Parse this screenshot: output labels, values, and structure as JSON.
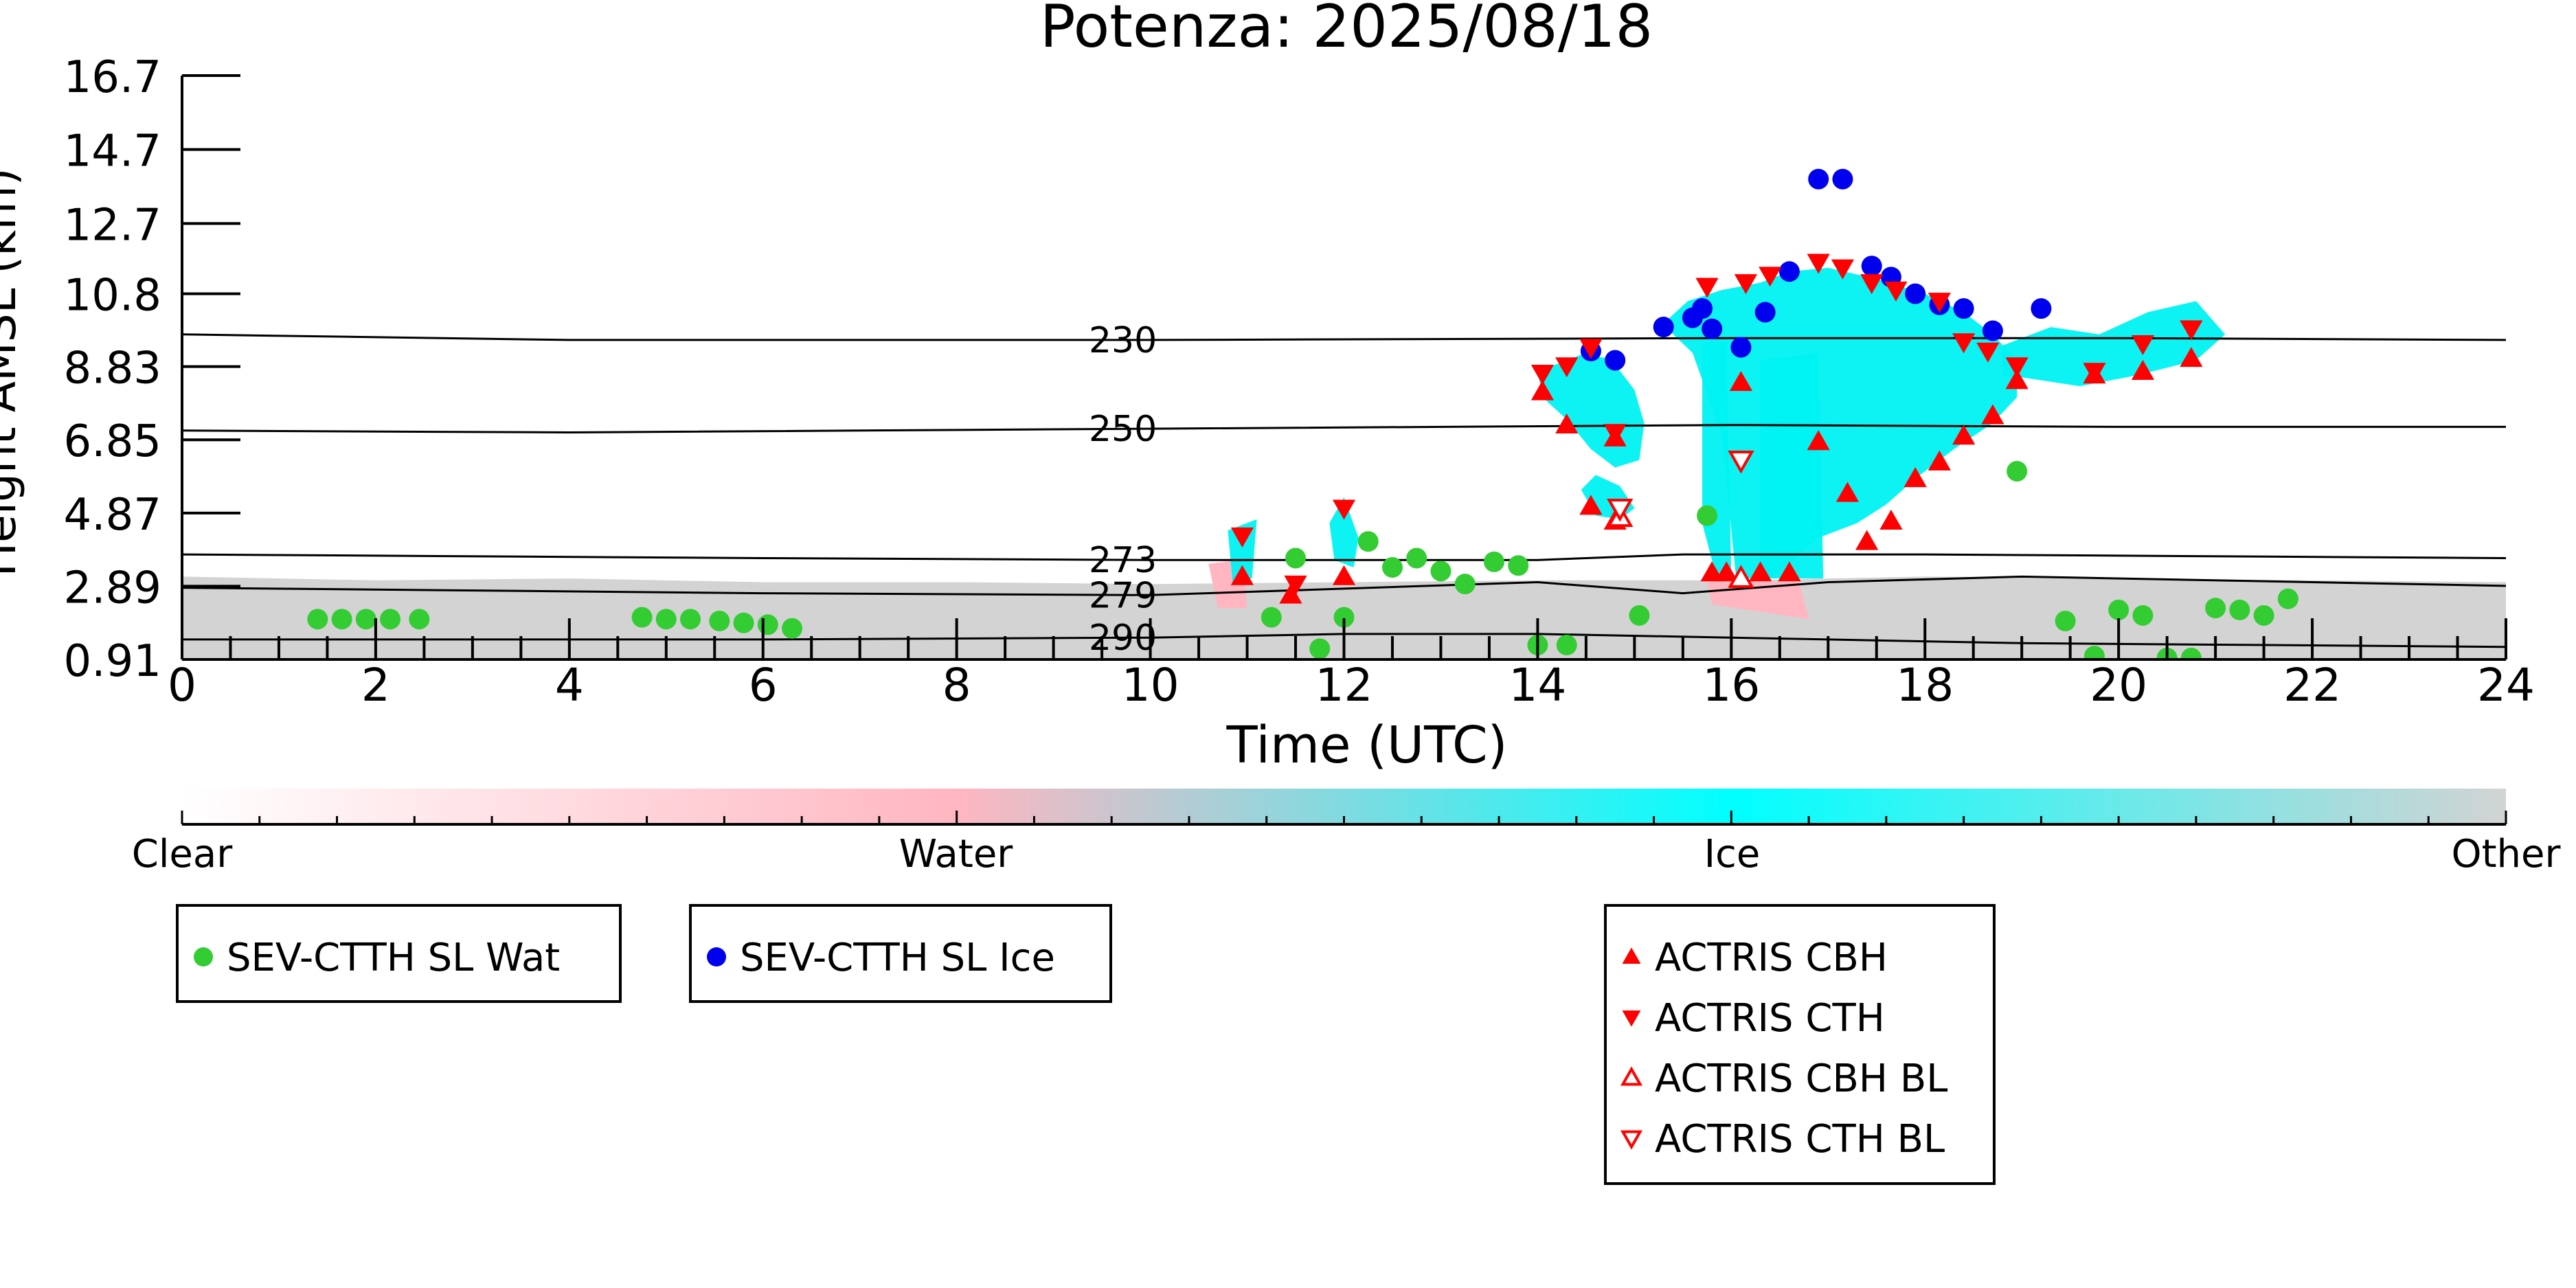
{
  "chart_data": {
    "type": "scatter",
    "title": "Potenza: 2025/08/18",
    "xlabel": "Time (UTC)",
    "ylabel": "Height AMSL (km)",
    "xlim": [
      0,
      24
    ],
    "ylim": [
      0.91,
      16.7
    ],
    "x_ticks": [
      "0",
      "2",
      "4",
      "6",
      "8",
      "10",
      "12",
      "14",
      "16",
      "18",
      "20",
      "22",
      "24"
    ],
    "y_ticks": [
      "0.91",
      "2.89",
      "4.87",
      "6.85",
      "8.83",
      "10.8",
      "12.7",
      "14.7",
      "16.7"
    ],
    "y_tick_values": [
      0.91,
      2.89,
      4.87,
      6.85,
      8.83,
      10.8,
      12.7,
      14.7,
      16.7
    ],
    "colorbar": {
      "labels": [
        "Clear",
        "Water",
        "Ice",
        "Other"
      ],
      "positions": [
        0,
        0.333,
        0.667,
        1.0
      ],
      "colors": [
        "#ffffff",
        "#ffb6c1",
        "#00ffff",
        "#d3d3d3"
      ]
    },
    "isotherms": [
      {
        "label": "230",
        "points": [
          [
            0,
            9.7
          ],
          [
            4,
            9.55
          ],
          [
            10,
            9.55
          ],
          [
            16,
            9.6
          ],
          [
            20,
            9.6
          ],
          [
            24,
            9.55
          ]
        ]
      },
      {
        "label": "250",
        "points": [
          [
            0,
            7.1
          ],
          [
            4,
            7.05
          ],
          [
            10,
            7.15
          ],
          [
            16,
            7.25
          ],
          [
            20,
            7.2
          ],
          [
            24,
            7.2
          ]
        ]
      },
      {
        "label": "273",
        "points": [
          [
            0,
            3.75
          ],
          [
            6,
            3.65
          ],
          [
            10,
            3.6
          ],
          [
            14,
            3.6
          ],
          [
            15.5,
            3.75
          ],
          [
            18,
            3.75
          ],
          [
            24,
            3.65
          ]
        ]
      },
      {
        "label": "279",
        "points": [
          [
            0,
            2.85
          ],
          [
            6,
            2.7
          ],
          [
            10,
            2.65
          ],
          [
            14,
            3.0
          ],
          [
            15.5,
            2.7
          ],
          [
            17,
            3.0
          ],
          [
            19,
            3.15
          ],
          [
            24,
            2.9
          ]
        ]
      },
      {
        "label": "290",
        "points": [
          [
            0,
            1.45
          ],
          [
            6,
            1.45
          ],
          [
            10,
            1.5
          ],
          [
            12,
            1.6
          ],
          [
            14,
            1.6
          ],
          [
            16,
            1.5
          ],
          [
            19,
            1.35
          ],
          [
            24,
            1.25
          ]
        ]
      }
    ],
    "series": [
      {
        "name": "SEV-CTTH SL Wat",
        "marker": "circle",
        "color": "#33cc33",
        "points": [
          [
            1.4,
            2.0
          ],
          [
            1.65,
            2.0
          ],
          [
            1.9,
            2.0
          ],
          [
            2.15,
            2.0
          ],
          [
            2.45,
            2.0
          ],
          [
            4.75,
            2.05
          ],
          [
            5.0,
            2.0
          ],
          [
            5.25,
            2.0
          ],
          [
            5.55,
            1.95
          ],
          [
            5.8,
            1.9
          ],
          [
            6.05,
            1.85
          ],
          [
            6.3,
            1.75
          ],
          [
            11.25,
            2.05
          ],
          [
            11.5,
            3.65
          ],
          [
            11.75,
            1.2
          ],
          [
            12.0,
            2.05
          ],
          [
            12.25,
            4.1
          ],
          [
            12.5,
            3.4
          ],
          [
            12.75,
            3.65
          ],
          [
            13.0,
            3.3
          ],
          [
            13.25,
            2.95
          ],
          [
            13.55,
            3.55
          ],
          [
            13.8,
            3.45
          ],
          [
            14.0,
            1.3
          ],
          [
            14.3,
            1.3
          ],
          [
            15.05,
            2.1
          ],
          [
            15.75,
            4.8
          ],
          [
            18.95,
            6.0
          ],
          [
            19.45,
            1.95
          ],
          [
            19.75,
            1.0
          ],
          [
            20.0,
            2.25
          ],
          [
            20.25,
            2.1
          ],
          [
            20.5,
            0.95
          ],
          [
            20.75,
            0.95
          ],
          [
            21.0,
            2.3
          ],
          [
            21.25,
            2.25
          ],
          [
            21.5,
            2.1
          ],
          [
            21.75,
            2.55
          ]
        ]
      },
      {
        "name": "SEV-CTTH SL Ice",
        "marker": "circle",
        "color": "#0000ee",
        "points": [
          [
            14.55,
            9.25
          ],
          [
            14.8,
            9.0
          ],
          [
            15.3,
            9.9
          ],
          [
            15.6,
            10.15
          ],
          [
            15.7,
            10.4
          ],
          [
            15.8,
            9.85
          ],
          [
            16.1,
            9.35
          ],
          [
            16.35,
            10.3
          ],
          [
            16.6,
            11.4
          ],
          [
            16.9,
            13.9
          ],
          [
            17.15,
            13.9
          ],
          [
            17.45,
            11.55
          ],
          [
            17.65,
            11.25
          ],
          [
            17.9,
            10.8
          ],
          [
            18.15,
            10.5
          ],
          [
            18.4,
            10.4
          ],
          [
            18.7,
            9.8
          ],
          [
            19.2,
            10.4
          ]
        ]
      },
      {
        "name": "ACTRIS CBH",
        "marker": "triangle-up",
        "color": "#ff0000",
        "points": [
          [
            10.95,
            3.15
          ],
          [
            11.45,
            2.65
          ],
          [
            12.0,
            3.15
          ],
          [
            14.05,
            8.15
          ],
          [
            14.3,
            7.25
          ],
          [
            14.55,
            5.05
          ],
          [
            14.8,
            6.9
          ],
          [
            14.8,
            4.65
          ],
          [
            15.8,
            3.25
          ],
          [
            15.95,
            3.25
          ],
          [
            16.1,
            8.4
          ],
          [
            16.3,
            3.25
          ],
          [
            16.6,
            3.25
          ],
          [
            16.9,
            6.8
          ],
          [
            17.2,
            5.4
          ],
          [
            17.4,
            4.1
          ],
          [
            17.65,
            4.65
          ],
          [
            17.9,
            5.8
          ],
          [
            18.15,
            6.25
          ],
          [
            18.4,
            6.95
          ],
          [
            18.7,
            7.5
          ],
          [
            18.95,
            8.45
          ],
          [
            19.75,
            8.6
          ],
          [
            20.25,
            8.7
          ],
          [
            20.75,
            9.05
          ]
        ]
      },
      {
        "name": "ACTRIS CTH",
        "marker": "triangle-down",
        "color": "#ff0000",
        "points": [
          [
            10.95,
            4.25
          ],
          [
            11.5,
            2.95
          ],
          [
            12.0,
            5.0
          ],
          [
            14.05,
            8.65
          ],
          [
            14.3,
            8.85
          ],
          [
            14.55,
            9.35
          ],
          [
            14.8,
            7.05
          ],
          [
            15.75,
            11.0
          ],
          [
            16.15,
            11.1
          ],
          [
            16.4,
            11.3
          ],
          [
            16.9,
            11.65
          ],
          [
            17.15,
            11.5
          ],
          [
            17.45,
            11.1
          ],
          [
            17.7,
            10.9
          ],
          [
            18.15,
            10.6
          ],
          [
            18.4,
            9.5
          ],
          [
            18.65,
            9.25
          ],
          [
            18.95,
            8.85
          ],
          [
            19.75,
            8.7
          ],
          [
            20.25,
            9.45
          ],
          [
            20.75,
            9.85
          ]
        ]
      },
      {
        "name": "ACTRIS CBH BL",
        "marker": "triangle-up-open",
        "color": "#ff0000",
        "points": [
          [
            14.85,
            4.75
          ],
          [
            16.1,
            3.1
          ]
        ]
      },
      {
        "name": "ACTRIS CTH BL",
        "marker": "triangle-down-open",
        "color": "#ff0000",
        "points": [
          [
            14.85,
            5.0
          ],
          [
            16.1,
            6.3
          ]
        ]
      }
    ],
    "cloud_mask": {
      "ice": [
        {
          "x": [
            14.0,
            14.2,
            14.45,
            14.75,
            15.0,
            15.1,
            15.05,
            14.8,
            14.55,
            14.3,
            14.05
          ],
          "y": [
            8.7,
            8.9,
            9.15,
            9.05,
            8.2,
            7.3,
            6.3,
            6.1,
            6.6,
            7.4,
            8.0
          ]
        },
        {
          "x": [
            14.45,
            14.6,
            14.85,
            15.0,
            14.85,
            14.6
          ],
          "y": [
            5.5,
            5.9,
            5.6,
            5.0,
            4.7,
            4.8
          ]
        },
        {
          "x": [
            15.3,
            15.55,
            15.9,
            16.3,
            16.6,
            17.0,
            17.5,
            18.0,
            18.4,
            18.7,
            18.95,
            18.95,
            18.7,
            18.3,
            17.9,
            17.6,
            17.3,
            16.9,
            16.4,
            16.05,
            15.9,
            15.6,
            15.4
          ],
          "y": [
            10.0,
            10.6,
            10.9,
            11.1,
            11.4,
            11.5,
            11.2,
            10.8,
            10.3,
            9.7,
            9.0,
            8.0,
            7.3,
            6.6,
            5.8,
            5.1,
            4.6,
            4.2,
            3.1,
            3.1,
            7.0,
            9.2,
            9.7
          ]
        },
        {
          "x": [
            15.7,
            15.95,
            16.0,
            15.85,
            15.7
          ],
          "y": [
            9.5,
            9.5,
            3.2,
            3.1,
            4.6
          ]
        },
        {
          "x": [
            16.3,
            16.9,
            16.95,
            16.3
          ],
          "y": [
            9.0,
            9.2,
            3.1,
            3.1
          ]
        },
        {
          "x": [
            18.8,
            19.3,
            19.8,
            20.3,
            20.8,
            21.1,
            20.8,
            20.2,
            19.6,
            19.1,
            18.8
          ],
          "y": [
            9.4,
            9.9,
            9.7,
            10.3,
            10.6,
            9.7,
            9.0,
            8.6,
            8.3,
            8.5,
            8.6
          ]
        },
        {
          "x": [
            10.8,
            11.1,
            11.05,
            10.85
          ],
          "y": [
            4.4,
            4.7,
            3.1,
            3.0
          ]
        },
        {
          "x": [
            11.85,
            12.0,
            12.15,
            12.1,
            11.9
          ],
          "y": [
            4.6,
            5.3,
            4.2,
            3.4,
            3.6
          ]
        }
      ],
      "water": [
        {
          "x": [
            10.6,
            10.95,
            11.0,
            10.7
          ],
          "y": [
            3.5,
            3.6,
            2.3,
            2.3
          ]
        },
        {
          "x": [
            15.75,
            16.7,
            16.8,
            15.8
          ],
          "y": [
            3.0,
            3.0,
            2.0,
            2.4
          ]
        }
      ],
      "other": [
        {
          "x": [
            0,
            2,
            4,
            6,
            8,
            10,
            12,
            14,
            16,
            18,
            20,
            22,
            24,
            24,
            0
          ],
          "y": [
            3.15,
            3.05,
            3.1,
            3.0,
            3.0,
            2.95,
            3.0,
            3.05,
            3.05,
            3.15,
            3.1,
            3.05,
            3.0,
            0.91,
            0.91
          ]
        }
      ]
    }
  }
}
